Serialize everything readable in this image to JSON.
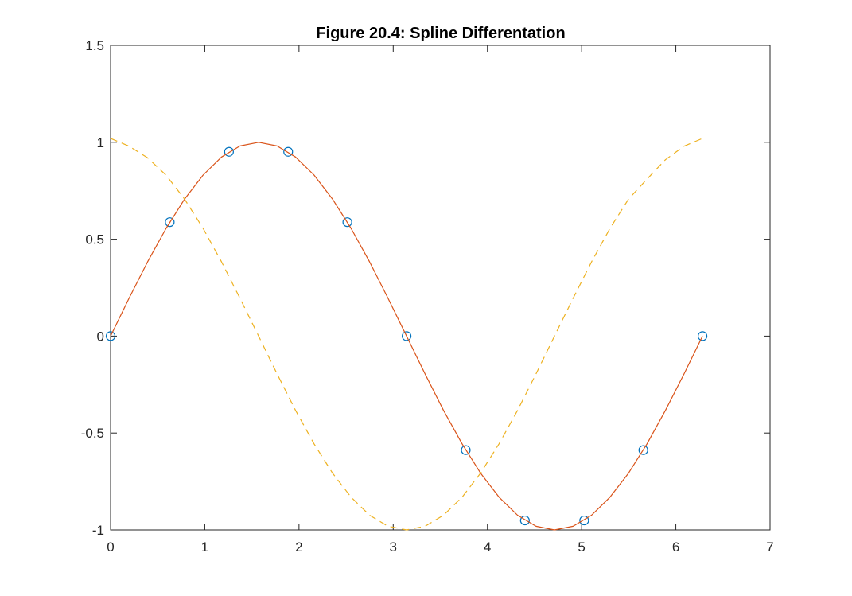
{
  "chart_data": {
    "type": "line",
    "title": "Figure 20.4: Spline Differentation",
    "xlabel": "",
    "ylabel": "",
    "xlim": [
      0,
      7
    ],
    "ylim": [
      -1,
      1.5
    ],
    "x_ticks": [
      0,
      1,
      2,
      3,
      4,
      5,
      6,
      7
    ],
    "y_ticks": [
      -1,
      -0.5,
      0,
      0.5,
      1,
      1.5
    ],
    "x_tick_labels": [
      "0",
      "1",
      "2",
      "3",
      "4",
      "5",
      "6",
      "7"
    ],
    "y_tick_labels": [
      "-1",
      "-0.5",
      "0",
      "0.5",
      "1",
      "1.5"
    ],
    "grid": false,
    "legend": "none",
    "series": [
      {
        "style": "markers",
        "marker": "circle",
        "color": "#0072BD",
        "x": [
          0,
          0.628,
          1.257,
          1.885,
          2.513,
          3.142,
          3.77,
          4.398,
          5.027,
          5.655,
          6.283
        ],
        "y": [
          0,
          0.588,
          0.951,
          0.951,
          0.588,
          0,
          -0.588,
          -0.951,
          -0.951,
          -0.588,
          0
        ]
      },
      {
        "style": "solid",
        "color": "#D95319",
        "x": [
          0,
          0.196,
          0.393,
          0.589,
          0.785,
          0.982,
          1.178,
          1.374,
          1.571,
          1.767,
          1.963,
          2.16,
          2.356,
          2.553,
          2.749,
          2.945,
          3.142,
          3.338,
          3.534,
          3.731,
          3.927,
          4.123,
          4.32,
          4.516,
          4.712,
          4.909,
          5.105,
          5.301,
          5.498,
          5.694,
          5.89,
          6.087,
          6.283
        ],
        "y": [
          0,
          0.195,
          0.383,
          0.556,
          0.707,
          0.831,
          0.924,
          0.981,
          1.0,
          0.981,
          0.924,
          0.831,
          0.707,
          0.556,
          0.383,
          0.195,
          0,
          -0.195,
          -0.383,
          -0.556,
          -0.707,
          -0.831,
          -0.924,
          -0.981,
          -1.0,
          -0.981,
          -0.924,
          -0.831,
          -0.707,
          -0.556,
          -0.383,
          -0.195,
          0
        ]
      },
      {
        "style": "dashed",
        "color": "#EDB120",
        "x": [
          0,
          0.196,
          0.393,
          0.589,
          0.785,
          0.982,
          1.178,
          1.374,
          1.571,
          1.767,
          1.963,
          2.16,
          2.356,
          2.553,
          2.749,
          2.945,
          3.142,
          3.338,
          3.534,
          3.731,
          3.927,
          4.123,
          4.32,
          4.516,
          4.712,
          4.909,
          5.105,
          5.301,
          5.498,
          5.694,
          5.89,
          6.087,
          6.283
        ],
        "y": [
          1.02,
          0.98,
          0.92,
          0.83,
          0.707,
          0.556,
          0.383,
          0.195,
          0,
          -0.195,
          -0.383,
          -0.556,
          -0.707,
          -0.831,
          -0.924,
          -0.981,
          -1.0,
          -0.981,
          -0.924,
          -0.831,
          -0.707,
          -0.556,
          -0.383,
          -0.195,
          0,
          0.195,
          0.383,
          0.556,
          0.707,
          0.81,
          0.91,
          0.98,
          1.02
        ]
      }
    ]
  }
}
